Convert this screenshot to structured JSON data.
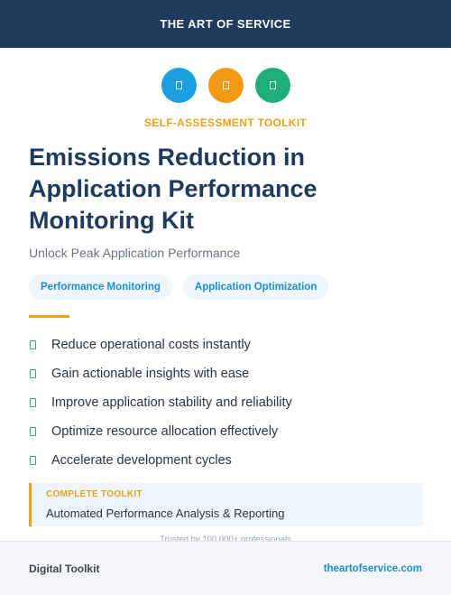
{
  "header": {
    "brand": "THE ART OF SERVICE"
  },
  "icons": [
    {
      "name": "document-icon",
      "color": "#1a9fe0"
    },
    {
      "name": "document-icon",
      "color": "#f29a16"
    },
    {
      "name": "document-icon",
      "color": "#1fae7a"
    }
  ],
  "eyebrow": "SELF-ASSESSMENT TOOLKIT",
  "title": "Emissions Reduction in Application Performance Monitoring Kit",
  "subtitle": "Unlock Peak Application Performance",
  "tags": [
    "Performance Monitoring",
    "Application Optimization"
  ],
  "features": [
    "Reduce operational costs instantly",
    "Gain actionable insights with ease",
    "Improve application stability and reliability",
    "Optimize resource allocation effectively",
    "Accelerate development cycles"
  ],
  "callout": {
    "label": "COMPLETE TOOLKIT",
    "text": "Automated Performance Analysis & Reporting"
  },
  "trusted": "Trusted by 100,000+ professionals",
  "footer": {
    "left": "Digital Toolkit",
    "right": "theartofservice.com"
  }
}
